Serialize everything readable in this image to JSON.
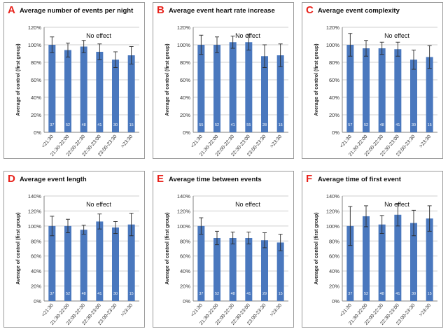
{
  "chart_data": [
    {
      "type": "bar",
      "panel_label": "A",
      "title": "Average number of events per night",
      "ylabel": "Average of control (first group)",
      "annotation": "No effect",
      "categories": [
        "<21:30",
        "21:30-22:00",
        "22:00-22:30",
        "22:30-23:00",
        "23:00-23:30",
        ">23:30"
      ],
      "values": [
        100,
        94,
        98,
        92,
        83,
        88
      ],
      "error": [
        9,
        8,
        7,
        9,
        9,
        10
      ],
      "n_labels": [
        "37",
        "52",
        "48",
        "41",
        "30",
        "15"
      ],
      "ylim": [
        0,
        120
      ],
      "yticks": [
        "0%",
        "20%",
        "40%",
        "60%",
        "80%",
        "100%",
        "120%"
      ],
      "grid": true
    },
    {
      "type": "bar",
      "panel_label": "B",
      "title": "Average event heart rate increase",
      "ylabel": "Average of control (first group)",
      "annotation": "No effect",
      "categories": [
        "<21:30",
        "21:30-22:00",
        "22:00-22:30",
        "22:30-23:00",
        "23:00-23:30",
        ">23:30"
      ],
      "values": [
        100,
        100,
        103,
        103,
        87,
        88
      ],
      "error": [
        11,
        9,
        7,
        9,
        13,
        13
      ],
      "n_labels": [
        "55",
        "52",
        "41",
        "55",
        "28",
        "15"
      ],
      "ylim": [
        0,
        120
      ],
      "yticks": [
        "0%",
        "20%",
        "40%",
        "60%",
        "80%",
        "100%",
        "120%"
      ],
      "grid": true
    },
    {
      "type": "bar",
      "panel_label": "C",
      "title": "Average event complexity",
      "ylabel": "Average of control (first group)",
      "annotation": "No effect",
      "categories": [
        "<21:30",
        "21:30-22:00",
        "22:00-22:30",
        "22:30-23:00",
        "23:00-23:30",
        ">23:30"
      ],
      "values": [
        100,
        96,
        96,
        95,
        83,
        86
      ],
      "error": [
        13,
        9,
        7,
        8,
        11,
        13
      ],
      "n_labels": [
        "57",
        "52",
        "48",
        "41",
        "30",
        "15"
      ],
      "ylim": [
        0,
        120
      ],
      "yticks": [
        "0%",
        "20%",
        "40%",
        "60%",
        "80%",
        "100%",
        "120%"
      ],
      "grid": true
    },
    {
      "type": "bar",
      "panel_label": "D",
      "title": "Average event length",
      "ylabel": "Average of control (first group)",
      "annotation": "No effect",
      "categories": [
        "<21:30",
        "21:30-22:00",
        "22:00-22:30",
        "22:30-23:00",
        "23:00-23:30",
        ">23:30"
      ],
      "values": [
        100,
        100,
        95,
        106,
        98,
        102
      ],
      "error": [
        13,
        9,
        6,
        10,
        8,
        15
      ],
      "n_labels": [
        "37",
        "52",
        "48",
        "41",
        "30",
        "15"
      ],
      "ylim": [
        0,
        140
      ],
      "yticks": [
        "0%",
        "20%",
        "40%",
        "60%",
        "80%",
        "100%",
        "120%",
        "140%"
      ],
      "grid": true
    },
    {
      "type": "bar",
      "panel_label": "E",
      "title": "Average time between events",
      "ylabel": "Average of control (first group)",
      "annotation": "No effect",
      "categories": [
        "<21:30",
        "21:30-22:00",
        "22:00-22:30",
        "22:30-23:00",
        "23:00-23:30",
        ">23:30"
      ],
      "values": [
        100,
        84,
        84,
        84,
        81,
        78
      ],
      "error": [
        11,
        9,
        8,
        8,
        10,
        11
      ],
      "n_labels": [
        "37",
        "52",
        "48",
        "41",
        "29",
        "15"
      ],
      "ylim": [
        0,
        140
      ],
      "yticks": [
        "0%",
        "20%",
        "40%",
        "60%",
        "80%",
        "100%",
        "120%",
        "140%"
      ],
      "grid": true
    },
    {
      "type": "bar",
      "panel_label": "F",
      "title": "Average time of first event",
      "ylabel": "Average of control (first group)",
      "annotation": "No effect",
      "categories": [
        "<21:30",
        "21:30-22:00",
        "22:00-22:30",
        "22:30-23:00",
        "23:00-23:30",
        ">23:30"
      ],
      "values": [
        100,
        113,
        102,
        115,
        104,
        110
      ],
      "error": [
        26,
        14,
        12,
        15,
        17,
        17
      ],
      "n_labels": [
        "37",
        "52",
        "48",
        "41",
        "30",
        "15"
      ],
      "ylim": [
        0,
        140
      ],
      "yticks": [
        "0%",
        "20%",
        "40%",
        "60%",
        "80%",
        "100%",
        "120%",
        "140%"
      ],
      "grid": true
    }
  ],
  "colors": {
    "bar": "#4a78be",
    "error_bar": "#2b2b2b",
    "grid": "#cfcfcf",
    "panel_letter": "#e8211a",
    "n_label": "#ffffff"
  }
}
